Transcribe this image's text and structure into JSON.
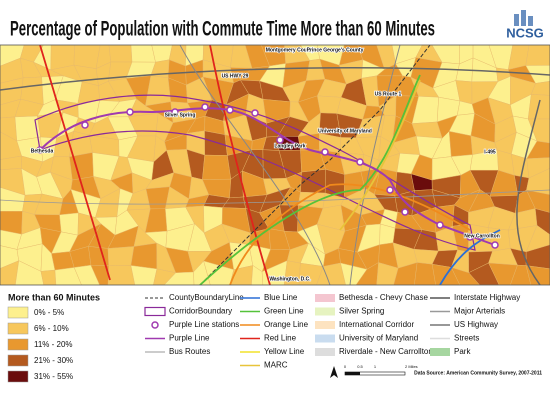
{
  "header": {
    "title": "Percentage of Population with Commute Time More than 60 Minutes",
    "logo": "NCSG"
  },
  "map": {
    "labels": [
      "Montgomery County",
      "Prince George's County",
      "US HWY 29",
      "US Route 1",
      "Silver Spring",
      "Bethesda",
      "Langley Park",
      "University of Maryland",
      "I-495",
      "New Carrollton",
      "Washington, D.C."
    ]
  },
  "legend": {
    "title": "More than 60 Minutes",
    "classes": [
      {
        "label": "0% - 5%",
        "color": "#fdf08e"
      },
      {
        "label": "6% - 10%",
        "color": "#f7c75c"
      },
      {
        "label": "11% - 20%",
        "color": "#e8982f"
      },
      {
        "label": "21% - 30%",
        "color": "#b45a1f"
      },
      {
        "label": "31% - 55%",
        "color": "#6a0c0c"
      }
    ],
    "layers": [
      [
        {
          "label": "CountyBoundaryLine",
          "color": "#333333",
          "symbol": "dash"
        },
        {
          "label": "CorridorBoundary",
          "color": "#8a2a9a",
          "symbol": "box"
        },
        {
          "label": "Purple Line stations",
          "color": "#a03ab0",
          "symbol": "circle"
        },
        {
          "label": "Purple Line",
          "color": "#a03ab0",
          "symbol": "line"
        },
        {
          "label": "Bus Routes",
          "color": "#bbbbbb",
          "symbol": "line"
        }
      ],
      [
        {
          "label": "Blue Line",
          "color": "#2b6fd6",
          "symbol": "line"
        },
        {
          "label": "Green Line",
          "color": "#55c23a",
          "symbol": "line"
        },
        {
          "label": "Orange Line",
          "color": "#f08a1c",
          "symbol": "line"
        },
        {
          "label": "Red Line",
          "color": "#e0241c",
          "symbol": "line"
        },
        {
          "label": "Yellow Line",
          "color": "#f2e22a",
          "symbol": "line"
        },
        {
          "label": "MARC",
          "color": "#e8c43a",
          "symbol": "line"
        }
      ],
      [
        {
          "label": "Bethesda - Chevy Chase",
          "color": "#f4c6d0",
          "symbol": "fill"
        },
        {
          "label": "Silver Spring",
          "color": "#e6f3c0",
          "symbol": "fill"
        },
        {
          "label": "International Corridor",
          "color": "#fde3c0",
          "symbol": "fill"
        },
        {
          "label": "University of Maryland",
          "color": "#c9dcef",
          "symbol": "fill"
        },
        {
          "label": "Riverdale - New Carrollton",
          "color": "#dddddd",
          "symbol": "fill"
        }
      ],
      [
        {
          "label": "Interstate Highway",
          "color": "#555555",
          "symbol": "line"
        },
        {
          "label": "Major Arterials",
          "color": "#999999",
          "symbol": "line"
        },
        {
          "label": "US Highway",
          "color": "#777777",
          "symbol": "line"
        },
        {
          "label": "Streets",
          "color": "#dddddd",
          "symbol": "line"
        },
        {
          "label": "Park",
          "color": "#a6d6a0",
          "symbol": "fill"
        }
      ]
    ]
  },
  "scale": {
    "ticks": [
      "0",
      "0.5",
      "1",
      "2 Miles"
    ]
  },
  "source": "Data Source: American Community Survey, 2007-2011"
}
